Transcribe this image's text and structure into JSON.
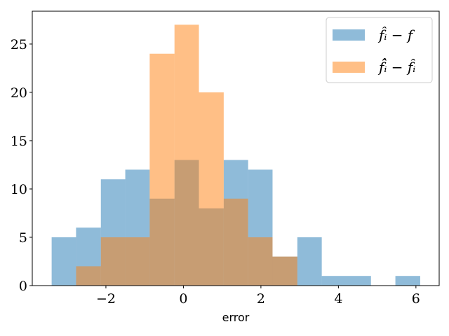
{
  "chart_data": {
    "type": "bar",
    "subtype": "overlapping-histogram",
    "xlabel": "error",
    "ylabel": "",
    "xlim": [
      -3.9,
      6.6
    ],
    "ylim": [
      0,
      28.4
    ],
    "xticks": [
      -2,
      0,
      2,
      4,
      6
    ],
    "xtick_labels": [
      "−2",
      "0",
      "2",
      "4",
      "6"
    ],
    "yticks": [
      0,
      5,
      10,
      15,
      20,
      25
    ],
    "ytick_labels": [
      "0",
      "5",
      "10",
      "15",
      "20",
      "25"
    ],
    "grid": false,
    "legend_position": "top-right",
    "series": [
      {
        "name": "f̂ᵢ − f",
        "color": "#1f77b4",
        "alpha": 0.5,
        "bin_edges": [
          -3.4,
          -2.77,
          -2.13,
          -1.5,
          -0.87,
          -0.23,
          0.4,
          1.04,
          1.67,
          2.3,
          2.94,
          3.57,
          4.21,
          4.84,
          5.47,
          6.11
        ],
        "counts": [
          5,
          6,
          11,
          12,
          9,
          13,
          8,
          13,
          12,
          3,
          5,
          1,
          1,
          0,
          1
        ]
      },
      {
        "name": "f̂̂ᵢ − f̂ᵢ",
        "color": "#ff7f0e",
        "alpha": 0.5,
        "bin_edges": [
          -2.77,
          -2.13,
          -1.5,
          -0.87,
          -0.23,
          0.4,
          1.04,
          1.67,
          2.3,
          2.94
        ],
        "counts": [
          2,
          5,
          5,
          24,
          27,
          20,
          9,
          5,
          3
        ]
      }
    ]
  }
}
